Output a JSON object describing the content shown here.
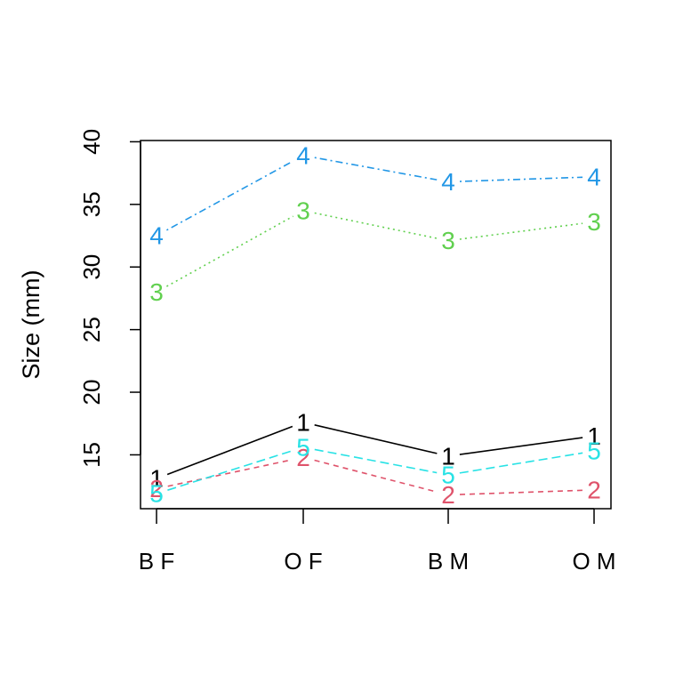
{
  "chart_data": {
    "type": "line",
    "title": "",
    "xlabel": "",
    "ylabel": "Size (mm)",
    "categories": [
      "B F",
      "O F",
      "B M",
      "O M"
    ],
    "ylim": [
      10.7,
      40.1
    ],
    "yticks": [
      15,
      20,
      25,
      30,
      35,
      40
    ],
    "yticklabels": [
      "15",
      "20",
      "25",
      "30",
      "35",
      "40"
    ],
    "grid": false,
    "series": [
      {
        "marker": "1",
        "color": "#000000",
        "dash": "solid",
        "values": [
          13.1,
          17.6,
          14.9,
          16.5
        ]
      },
      {
        "marker": "2",
        "color": "#DF536B",
        "dash": "dashed",
        "values": [
          12.3,
          14.8,
          11.8,
          12.2
        ]
      },
      {
        "marker": "3",
        "color": "#61D04F",
        "dash": "dotted",
        "values": [
          28.0,
          34.5,
          32.1,
          33.6
        ]
      },
      {
        "marker": "4",
        "color": "#2297E6",
        "dash": "dotdash",
        "values": [
          32.5,
          38.9,
          36.8,
          37.2
        ]
      },
      {
        "marker": "5",
        "color": "#28E2E5",
        "dash": "longdash",
        "values": [
          11.9,
          15.6,
          13.4,
          15.3
        ]
      }
    ]
  }
}
